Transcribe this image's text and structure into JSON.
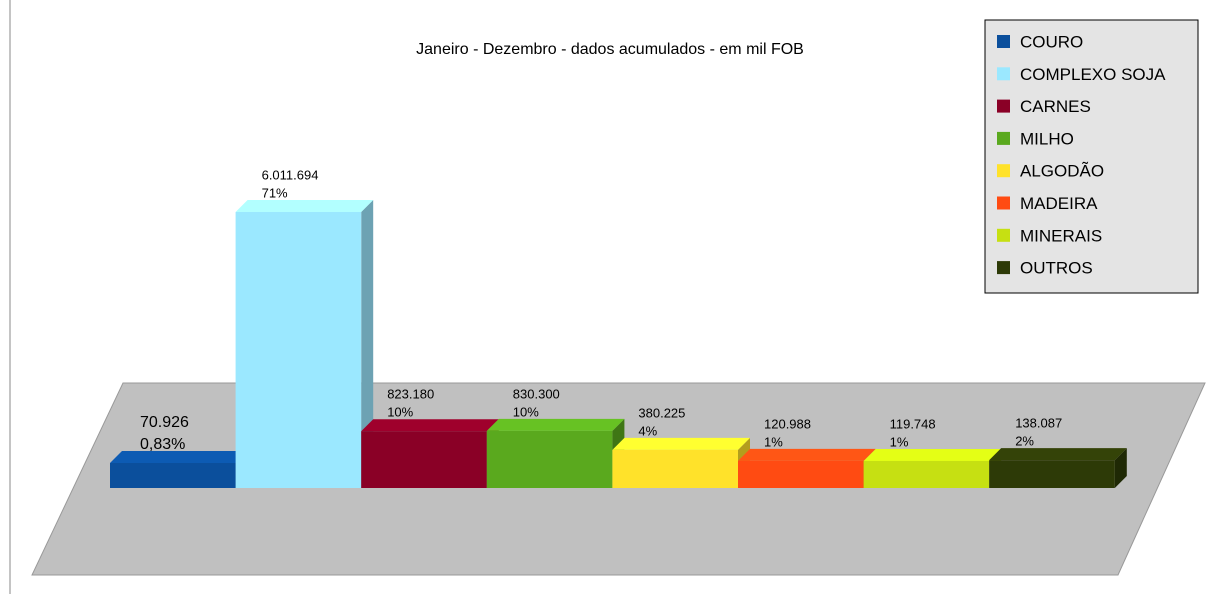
{
  "chart_data": {
    "type": "bar3d",
    "title": "Janeiro - Dezembro - dados acumulados - em mil FOB",
    "categories": [
      "COURO",
      "COMPLEXO SOJA",
      "CARNES",
      "MILHO",
      "ALGODÃO",
      "MADEIRA",
      "MINERAIS",
      "OUTROS"
    ],
    "values": [
      70926,
      6011694,
      823180,
      830300,
      380225,
      120988,
      119748,
      138087
    ],
    "value_labels": [
      "70.926",
      "6.011.694",
      "823.180",
      "830.300",
      "380.225",
      "120.988",
      "119.748",
      "138.087"
    ],
    "percents": [
      0.83,
      71,
      10,
      10,
      4,
      1,
      1,
      2
    ],
    "percent_labels": [
      "0,83%",
      "71%",
      "10%",
      "10%",
      "4%",
      "1%",
      "1%",
      "2%"
    ],
    "colors": [
      "#0b4f9c",
      "#9be8ff",
      "#8a0026",
      "#5aa91e",
      "#ffe22a",
      "#ff4b12",
      "#c6e012",
      "#2d3a07"
    ],
    "legend": "top-right"
  }
}
